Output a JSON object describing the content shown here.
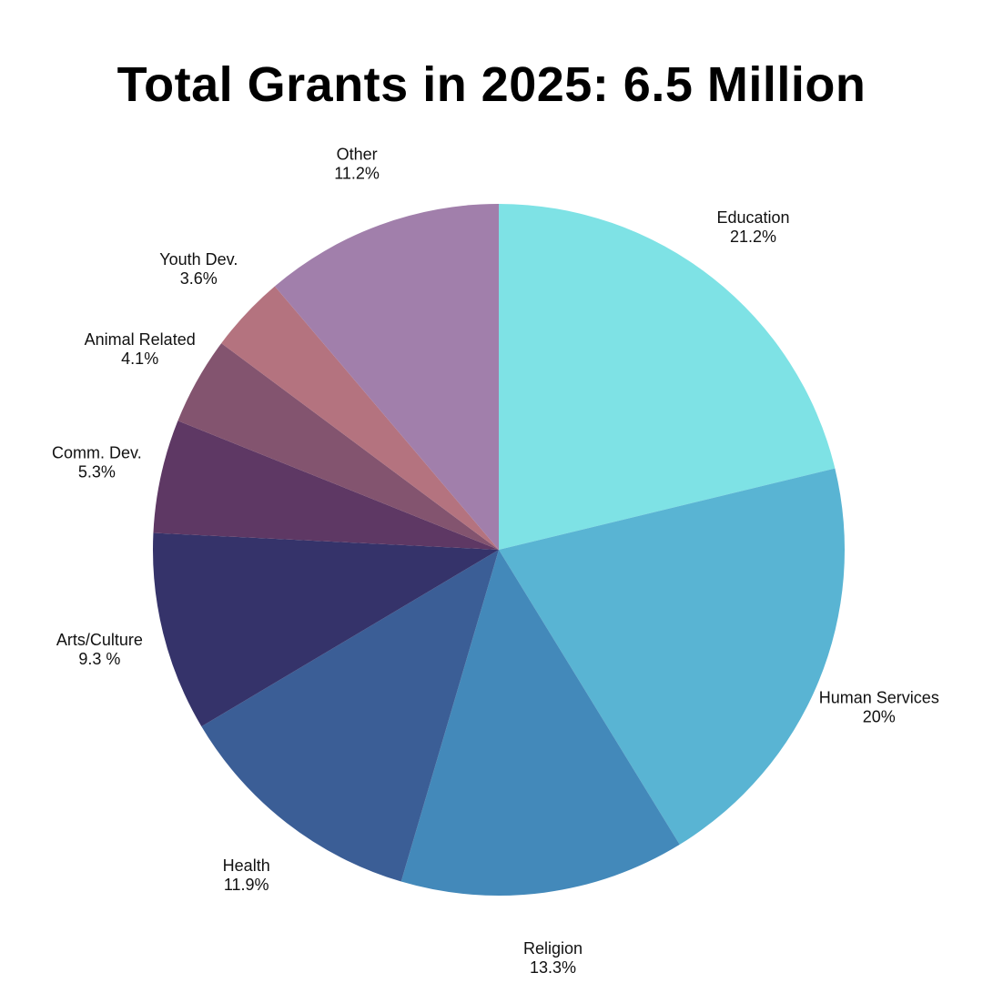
{
  "chart_data": {
    "type": "pie",
    "title": "Total Grants in 2025: 6.5 Million",
    "start": "12 o'clock",
    "direction": "clockwise",
    "slices": [
      {
        "label": "Education",
        "value_text": "21.2%",
        "value": 21.2,
        "color": "#7ee2e5"
      },
      {
        "label": "Human Services",
        "value_text": "20%",
        "value": 20.0,
        "color": "#59b4d3"
      },
      {
        "label": "Religion",
        "value_text": "13.3%",
        "value": 13.3,
        "color": "#4389ba"
      },
      {
        "label": "Health",
        "value_text": "11.9%",
        "value": 11.9,
        "color": "#3b5e96"
      },
      {
        "label": "Arts/Culture",
        "value_text": "9.3 %",
        "value": 9.3,
        "color": "#35336a"
      },
      {
        "label": "Comm. Dev.",
        "value_text": "5.3%",
        "value": 5.3,
        "color": "#5e3864"
      },
      {
        "label": "Animal Related",
        "value_text": "4.1%",
        "value": 4.1,
        "color": "#83546f"
      },
      {
        "label": "Youth Dev.",
        "value_text": "3.6%",
        "value": 3.6,
        "color": "#b4737f"
      },
      {
        "label": "Other",
        "value_text": "11.2%",
        "value": 11.2,
        "color": "#a17fab"
      }
    ]
  }
}
